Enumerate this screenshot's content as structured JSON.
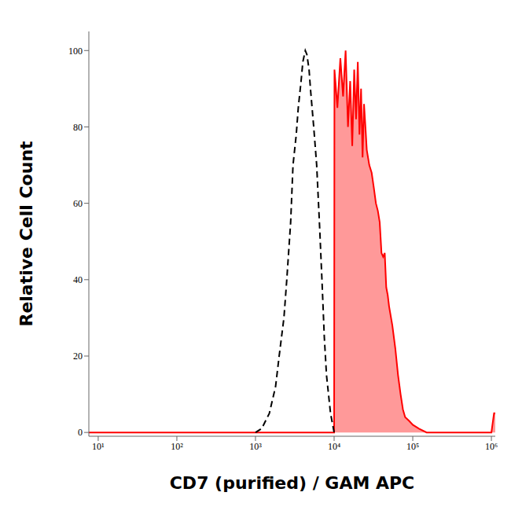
{
  "chart_data": {
    "type": "line",
    "x_label": "CD7 (purified) / GAM APC",
    "y_label": "Relative Cell Count",
    "log": "x",
    "grid": false,
    "xlim": [
      7.6,
      1120000
    ],
    "ylim": [
      -1,
      105
    ],
    "xticks": [
      {
        "value": 10,
        "label": "10¹"
      },
      {
        "value": 100,
        "label": "10²"
      },
      {
        "value": 1000,
        "label": "10³"
      },
      {
        "value": 10000,
        "label": "10⁴"
      },
      {
        "value": 100000,
        "label": "10⁵"
      },
      {
        "value": 1000000,
        "label": "10⁶"
      }
    ],
    "yticks": [
      0,
      20,
      40,
      60,
      80,
      100
    ],
    "series": [
      {
        "type": "line",
        "color": "#000000",
        "line_style": "dashed",
        "x": [
          1000,
          1200,
          1500,
          1800,
          2000,
          2300,
          2500,
          2800,
          3000,
          3300,
          3500,
          3800,
          4000,
          4300,
          4500,
          4800,
          5000,
          5500,
          6000,
          6500,
          7000,
          7500,
          8000,
          9000,
          10000
        ],
        "values": [
          0,
          1,
          5,
          12,
          20,
          30,
          40,
          55,
          70,
          78,
          85,
          92,
          97,
          100,
          99,
          95,
          90,
          80,
          70,
          55,
          40,
          25,
          15,
          5,
          0
        ]
      },
      {
        "type": "area",
        "color": "#ff0000",
        "line_style": "solid",
        "x": [
          7.6,
          10000,
          10100,
          11000,
          12000,
          13000,
          14000,
          15000,
          16000,
          17000,
          18000,
          19000,
          20000,
          21000,
          22000,
          23000,
          24000,
          25000,
          26000,
          28000,
          30000,
          32000,
          34000,
          36000,
          38000,
          40000,
          42000,
          44000,
          46000,
          48000,
          50000,
          55000,
          60000,
          65000,
          70000,
          75000,
          80000,
          90000,
          100000,
          120000,
          150000,
          1000000,
          1080000,
          1120000
        ],
        "values": [
          0,
          0,
          95,
          85,
          98,
          88,
          100,
          80,
          92,
          75,
          95,
          82,
          97,
          78,
          90,
          72,
          86,
          80,
          74,
          70,
          68,
          64,
          60,
          58,
          55,
          47,
          46,
          47,
          38,
          36,
          33,
          28,
          22,
          15,
          10,
          6,
          4,
          3,
          2,
          1,
          0,
          0,
          5,
          5
        ]
      }
    ]
  }
}
